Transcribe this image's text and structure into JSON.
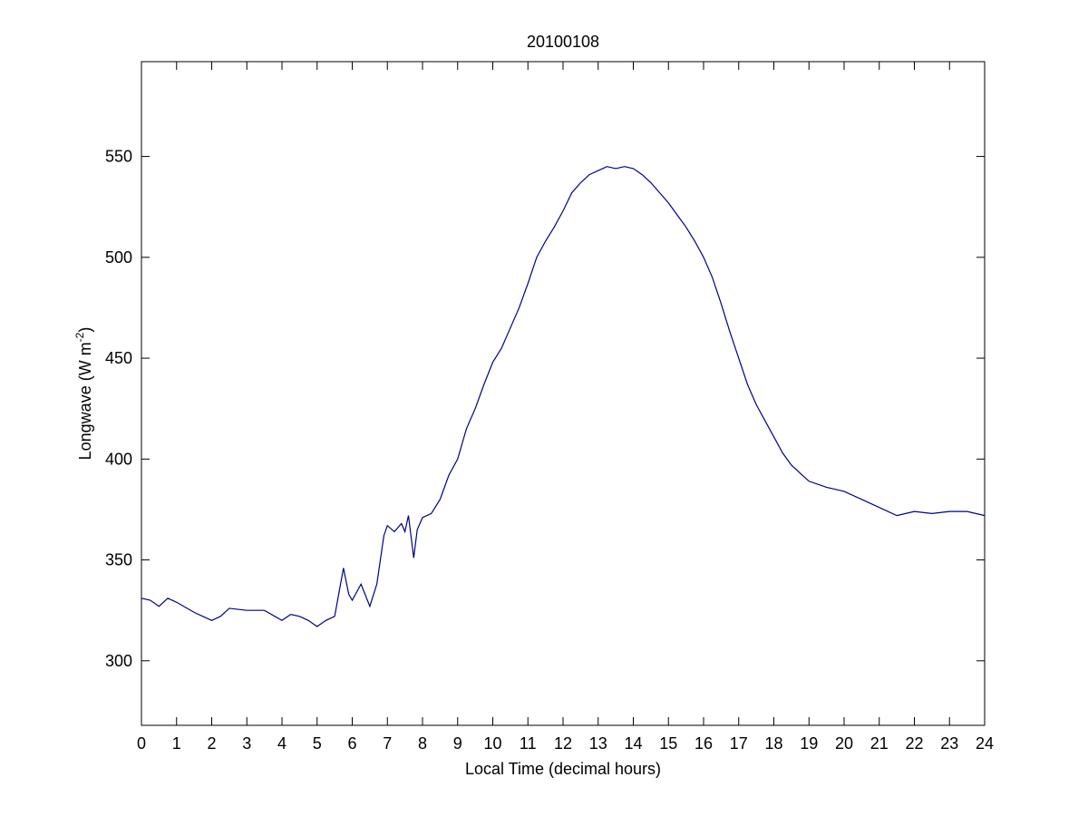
{
  "chart_data": {
    "type": "line",
    "title": "20100108",
    "xlabel": "Local Time (decimal hours)",
    "ylabel": [
      "Longwave (W m",
      "-2",
      ")"
    ],
    "series": [
      {
        "color": "#00008b",
        "x": [
          0,
          0.25,
          0.5,
          0.75,
          1,
          1.5,
          2,
          2.25,
          2.5,
          3,
          3.5,
          4,
          4.25,
          4.5,
          4.75,
          5,
          5.25,
          5.5,
          5.75,
          5.9,
          6,
          6.25,
          6.5,
          6.7,
          6.9,
          7,
          7.2,
          7.4,
          7.5,
          7.6,
          7.75,
          7.85,
          8,
          8.25,
          8.5,
          8.75,
          9,
          9.25,
          9.5,
          9.75,
          10,
          10.25,
          10.5,
          10.75,
          11,
          11.25,
          11.5,
          11.75,
          12,
          12.25,
          12.5,
          12.75,
          13,
          13.25,
          13.5,
          13.75,
          14,
          14.25,
          14.5,
          14.75,
          15,
          15.25,
          15.5,
          15.75,
          16,
          16.25,
          16.5,
          16.75,
          17,
          17.25,
          17.5,
          17.75,
          18,
          18.25,
          18.5,
          18.75,
          19,
          19.5,
          20,
          20.5,
          21,
          21.5,
          22,
          22.5,
          23,
          23.5,
          24
        ],
        "values": [
          331,
          330,
          327,
          331,
          329,
          324,
          320,
          322,
          326,
          325,
          325,
          320,
          323,
          322,
          320,
          317,
          320,
          322,
          346,
          333,
          330,
          338,
          327,
          338,
          362,
          367,
          364,
          368,
          364,
          372,
          351,
          365,
          371,
          373,
          380,
          392,
          400,
          415,
          425,
          437,
          448,
          455,
          465,
          475,
          487,
          500,
          508,
          515,
          523,
          532,
          537,
          541,
          543,
          545,
          544,
          545,
          544,
          541,
          537,
          532,
          527,
          521,
          515,
          508,
          500,
          490,
          477,
          463,
          450,
          437,
          427,
          419,
          411,
          403,
          397,
          393,
          389,
          386,
          384,
          380,
          376,
          372,
          374,
          373,
          374,
          374,
          372
        ]
      }
    ],
    "xlim": [
      0,
      24
    ],
    "xticks": [
      0,
      1,
      2,
      3,
      4,
      5,
      6,
      7,
      8,
      9,
      10,
      11,
      12,
      13,
      14,
      15,
      16,
      17,
      18,
      19,
      20,
      21,
      22,
      23,
      24
    ],
    "ylim": [
      268,
      597
    ],
    "yticks": [
      300,
      350,
      400,
      450,
      500,
      550
    ],
    "grid": false
  }
}
